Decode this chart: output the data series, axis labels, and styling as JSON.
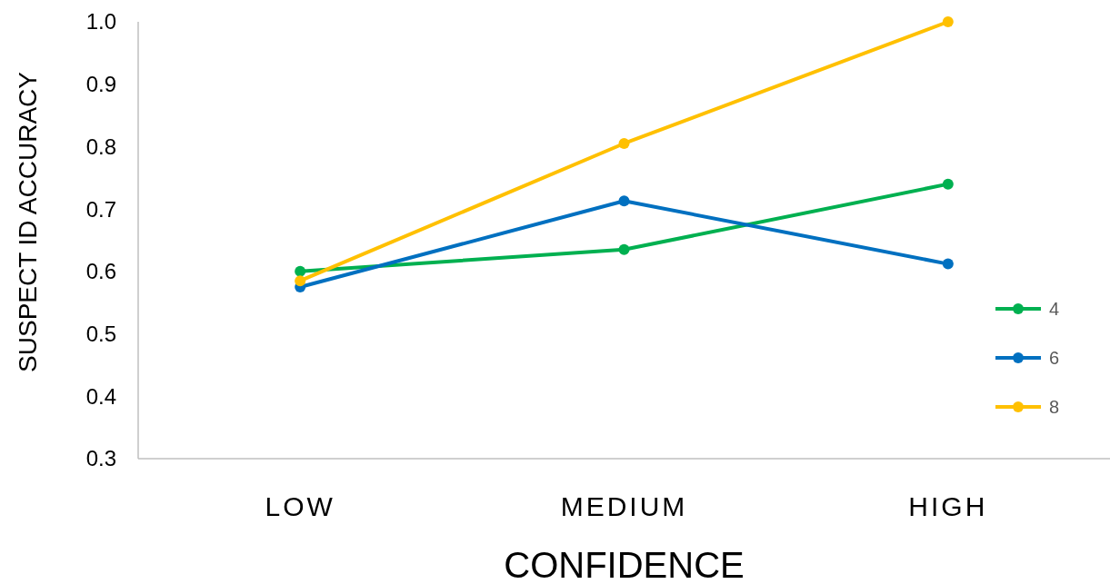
{
  "chart_data": {
    "type": "line",
    "xlabel": "CONFIDENCE",
    "ylabel": "SUSPECT ID ACCURACY",
    "categories": [
      "LOW",
      "MEDIUM",
      "HIGH"
    ],
    "series": [
      {
        "name": "4",
        "color": "#00b050",
        "values": [
          0.6,
          0.635,
          0.74
        ]
      },
      {
        "name": "6",
        "color": "#0070c0",
        "values": [
          0.575,
          0.713,
          0.612
        ]
      },
      {
        "name": "8",
        "color": "#ffc000",
        "values": [
          0.585,
          0.805,
          1.0
        ]
      }
    ],
    "ylim": [
      0.3,
      1.0
    ],
    "yticks": [
      {
        "value": 0.3,
        "label": "0.3"
      },
      {
        "value": 0.4,
        "label": "0.4"
      },
      {
        "value": 0.5,
        "label": "0.5"
      },
      {
        "value": 0.6,
        "label": "0.6"
      },
      {
        "value": 0.7,
        "label": "0.7"
      },
      {
        "value": 0.8,
        "label": "0.8"
      },
      {
        "value": 0.9,
        "label": "0.9"
      },
      {
        "value": 1.0,
        "label": "1.0"
      }
    ],
    "grid": false,
    "legend": "right",
    "marker": "circle",
    "line_style": "solid"
  }
}
